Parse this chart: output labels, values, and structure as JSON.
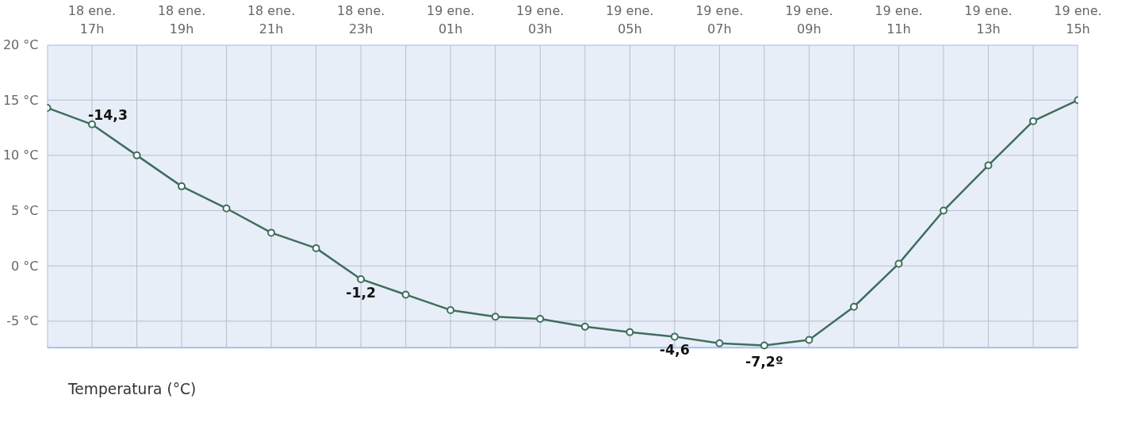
{
  "chart_data": {
    "type": "line",
    "categories": [
      null,
      "18 ene.\n17h",
      null,
      "18 ene.\n19h",
      null,
      "18 ene.\n21h",
      null,
      "18 ene.\n23h",
      null,
      "19 ene.\n01h",
      null,
      "19 ene.\n03h",
      null,
      "19 ene.\n05h",
      null,
      "19 ene.\n07h",
      null,
      "19 ene.\n09h",
      null,
      "19 ene.\n11h",
      null,
      "19 ene.\n13h",
      null,
      "19 ene.\n15h"
    ],
    "series": [
      {
        "name": "Temperatura (°C)",
        "color": "#3f6e5e",
        "values": [
          14.3,
          12.8,
          10.0,
          7.2,
          5.2,
          3.0,
          1.6,
          -1.2,
          -2.6,
          -4.0,
          -4.6,
          -4.8,
          -5.5,
          -6.0,
          -6.4,
          -7.0,
          -7.2,
          -6.7,
          -3.7,
          0.2,
          5.0,
          9.1,
          13.1,
          15.0
        ]
      }
    ],
    "ylim": [
      -7.4,
      20
    ],
    "yticks": [
      {
        "value": -5,
        "label": "-5 °C"
      },
      {
        "value": 0,
        "label": "0 °C"
      },
      {
        "value": 5,
        "label": "5 °C"
      },
      {
        "value": 10,
        "label": "10 °C"
      },
      {
        "value": 15,
        "label": "15 °C"
      },
      {
        "value": 20,
        "label": "20 °C"
      }
    ],
    "annotations": [
      {
        "text": "-14,3",
        "x": "18 ene.\n17h",
        "y": 12.8
      },
      {
        "text": "-1,2",
        "x": "18 ene.\n23h",
        "y": -1.2
      },
      {
        "text": "-4,6",
        "y": -6.4
      },
      {
        "text": "-7,2º",
        "y": -7.2
      }
    ],
    "grid": true,
    "legend": "bottom left",
    "marker": "circle",
    "line_style": "solid"
  }
}
